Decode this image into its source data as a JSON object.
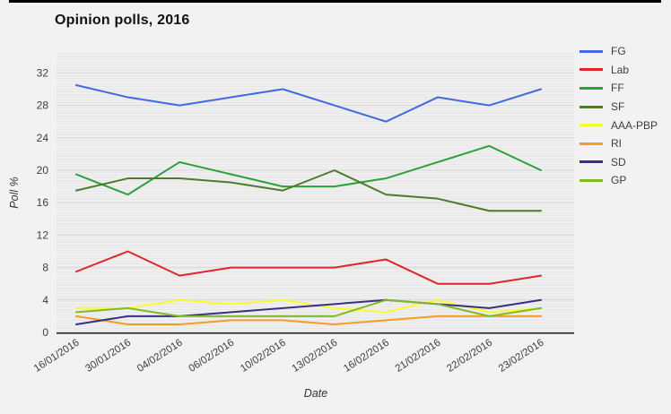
{
  "title": "Opinion polls, 2016",
  "colors": {
    "background": "#f2f2f2",
    "plot_background": "#efefef",
    "plot_stripe": "#e5e5e5",
    "gridline": "#d8d8d8",
    "axis_line": "#1a1a1a",
    "tick_text": "#3d3d3d",
    "axis_title_text": "#333333",
    "top_border": "#000000"
  },
  "chart_data": {
    "type": "line",
    "title": "Opinion polls, 2016",
    "xlabel": "Date",
    "ylabel": "Poll %",
    "ylim": [
      0,
      34.5
    ],
    "yticks": [
      0,
      4,
      8,
      12,
      16,
      20,
      24,
      28,
      32
    ],
    "grid": "horizontal major gridlines, striped plot background",
    "legend_position": "right",
    "categories": [
      "16/01/2016",
      "30/01/2016",
      "04/02/2016",
      "06/02/2016",
      "10/02/2016",
      "13/02/2016",
      "16/02/2016",
      "21/02/2016",
      "22/02/2016",
      "23/02/2016"
    ],
    "series": [
      {
        "name": "FG",
        "color": "#4169e1",
        "values": [
          30.5,
          29,
          28,
          29,
          30,
          28,
          26,
          29,
          28,
          30
        ]
      },
      {
        "name": "Lab",
        "color": "#e0262b",
        "values": [
          7.5,
          10,
          7,
          8,
          8,
          8,
          9,
          6,
          6,
          7
        ]
      },
      {
        "name": "FF",
        "color": "#2aa13a",
        "values": [
          19.5,
          17,
          21,
          19.5,
          18,
          18,
          19,
          21,
          23,
          20
        ]
      },
      {
        "name": "SF",
        "color": "#4e7b2a",
        "values": [
          17.5,
          19,
          19,
          18.5,
          17.5,
          20,
          17,
          16.5,
          15,
          15
        ]
      },
      {
        "name": "AAA-PBP",
        "color": "#fafa33",
        "values": [
          3,
          3,
          4,
          3.5,
          4,
          3,
          2.5,
          4,
          2.5,
          3
        ]
      },
      {
        "name": "RI",
        "color": "#f89c1c",
        "values": [
          2,
          1,
          1,
          1.5,
          1.5,
          1,
          1.5,
          2,
          2,
          2
        ]
      },
      {
        "name": "SD",
        "color": "#363087",
        "values": [
          1,
          2,
          2,
          2.5,
          3,
          3.5,
          4,
          3.5,
          3,
          4
        ]
      },
      {
        "name": "GP",
        "color": "#7fba26",
        "values": [
          2.5,
          3,
          2,
          2,
          2,
          2,
          4,
          3.5,
          2,
          3
        ]
      }
    ]
  }
}
